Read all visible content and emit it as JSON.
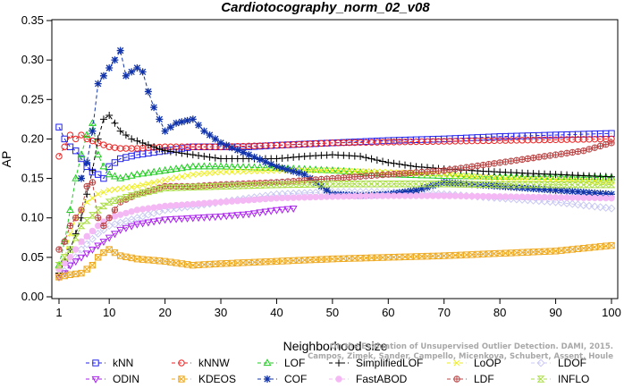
{
  "chart_data": {
    "type": "line",
    "title": "Cardiotocography_norm_02_v08",
    "xlabel": "Neighborhood size",
    "ylabel": "AP",
    "xlim": [
      1,
      100
    ],
    "ylim": [
      0,
      0.35
    ],
    "x_ticks": [
      "1",
      "10",
      "20",
      "30",
      "40",
      "50",
      "60",
      "70",
      "80",
      "90",
      "100"
    ],
    "x_tick_values": [
      1,
      10,
      20,
      30,
      40,
      50,
      60,
      70,
      80,
      90,
      100
    ],
    "y_ticks": [
      "0.00",
      "0.05",
      "0.10",
      "0.15",
      "0.20",
      "0.25",
      "0.30",
      "0.35"
    ],
    "y_tick_values": [
      0,
      0.05,
      0.1,
      0.15,
      0.2,
      0.25,
      0.3,
      0.35
    ],
    "grid": false,
    "legend_position": "bottom",
    "credit_lines": [
      "Campos, Zimek, Sander, Campello, Micenkova, Schubert, Assent, Houle",
      "On the Evaluation of Unsupervised Outlier Detection. DAMI, 2015."
    ],
    "series": [
      {
        "name": "kNN",
        "color": "#2222ee",
        "marker": "square",
        "points": [
          [
            1,
            0.215
          ],
          [
            2,
            0.2
          ],
          [
            3,
            0.19
          ],
          [
            4,
            0.185
          ],
          [
            5,
            0.175
          ],
          [
            6,
            0.165
          ],
          [
            7,
            0.158
          ],
          [
            8,
            0.155
          ],
          [
            9,
            0.15
          ],
          [
            10,
            0.165
          ],
          [
            12,
            0.175
          ],
          [
            15,
            0.18
          ],
          [
            20,
            0.185
          ],
          [
            25,
            0.19
          ],
          [
            30,
            0.19
          ],
          [
            35,
            0.19
          ],
          [
            40,
            0.192
          ],
          [
            50,
            0.195
          ],
          [
            60,
            0.198
          ],
          [
            70,
            0.2
          ],
          [
            80,
            0.203
          ],
          [
            90,
            0.205
          ],
          [
            100,
            0.207
          ]
        ]
      },
      {
        "name": "kNNW",
        "color": "#ee2222",
        "marker": "circle",
        "points": [
          [
            1,
            0.178
          ],
          [
            2,
            0.19
          ],
          [
            3,
            0.205
          ],
          [
            4,
            0.2
          ],
          [
            5,
            0.205
          ],
          [
            6,
            0.2
          ],
          [
            8,
            0.195
          ],
          [
            10,
            0.19
          ],
          [
            12,
            0.188
          ],
          [
            15,
            0.188
          ],
          [
            20,
            0.19
          ],
          [
            30,
            0.19
          ],
          [
            40,
            0.192
          ],
          [
            50,
            0.195
          ],
          [
            60,
            0.196
          ],
          [
            70,
            0.197
          ],
          [
            80,
            0.198
          ],
          [
            90,
            0.199
          ],
          [
            100,
            0.2
          ]
        ]
      },
      {
        "name": "LOF",
        "color": "#22cc22",
        "marker": "triangle-up",
        "points": [
          [
            1,
            0.04
          ],
          [
            2,
            0.07
          ],
          [
            3,
            0.11
          ],
          [
            4,
            0.15
          ],
          [
            5,
            0.18
          ],
          [
            6,
            0.205
          ],
          [
            7,
            0.22
          ],
          [
            8,
            0.18
          ],
          [
            9,
            0.165
          ],
          [
            10,
            0.155
          ],
          [
            12,
            0.15
          ],
          [
            15,
            0.155
          ],
          [
            20,
            0.16
          ],
          [
            25,
            0.165
          ],
          [
            30,
            0.165
          ],
          [
            40,
            0.163
          ],
          [
            50,
            0.16
          ],
          [
            60,
            0.155
          ],
          [
            70,
            0.153
          ],
          [
            80,
            0.152
          ],
          [
            90,
            0.152
          ],
          [
            100,
            0.151
          ]
        ]
      },
      {
        "name": "SimplifiedLOF",
        "color": "#000000",
        "marker": "plus",
        "points": [
          [
            1,
            0.03
          ],
          [
            2,
            0.045
          ],
          [
            3,
            0.06
          ],
          [
            4,
            0.08
          ],
          [
            5,
            0.1
          ],
          [
            6,
            0.13
          ],
          [
            7,
            0.16
          ],
          [
            8,
            0.2
          ],
          [
            9,
            0.225
          ],
          [
            10,
            0.23
          ],
          [
            11,
            0.22
          ],
          [
            12,
            0.21
          ],
          [
            14,
            0.2
          ],
          [
            16,
            0.195
          ],
          [
            18,
            0.19
          ],
          [
            20,
            0.185
          ],
          [
            25,
            0.18
          ],
          [
            30,
            0.175
          ],
          [
            40,
            0.175
          ],
          [
            45,
            0.178
          ],
          [
            50,
            0.18
          ],
          [
            55,
            0.178
          ],
          [
            60,
            0.17
          ],
          [
            65,
            0.165
          ],
          [
            70,
            0.162
          ],
          [
            80,
            0.158
          ],
          [
            90,
            0.155
          ],
          [
            100,
            0.152
          ]
        ]
      },
      {
        "name": "LoOP",
        "color": "#eeee22",
        "marker": "cross",
        "points": [
          [
            1,
            0.03
          ],
          [
            2,
            0.05
          ],
          [
            3,
            0.08
          ],
          [
            4,
            0.1
          ],
          [
            5,
            0.11
          ],
          [
            6,
            0.12
          ],
          [
            8,
            0.13
          ],
          [
            10,
            0.135
          ],
          [
            15,
            0.14
          ],
          [
            20,
            0.148
          ],
          [
            25,
            0.155
          ],
          [
            30,
            0.158
          ],
          [
            40,
            0.16
          ],
          [
            50,
            0.16
          ],
          [
            60,
            0.158
          ],
          [
            70,
            0.155
          ],
          [
            80,
            0.15
          ],
          [
            90,
            0.148
          ],
          [
            100,
            0.146
          ]
        ]
      },
      {
        "name": "LDOF",
        "color": "#c8c8f4",
        "marker": "diamond",
        "points": [
          [
            1,
            0.025
          ],
          [
            3,
            0.04
          ],
          [
            5,
            0.06
          ],
          [
            8,
            0.08
          ],
          [
            10,
            0.09
          ],
          [
            15,
            0.1
          ],
          [
            20,
            0.11
          ],
          [
            30,
            0.12
          ],
          [
            40,
            0.13
          ],
          [
            50,
            0.133
          ],
          [
            60,
            0.133
          ],
          [
            70,
            0.13
          ],
          [
            80,
            0.125
          ],
          [
            90,
            0.12
          ],
          [
            100,
            0.112
          ]
        ]
      },
      {
        "name": "ODIN",
        "color": "#aa22ee",
        "marker": "triangle-down",
        "points": [
          [
            1,
            0.025
          ],
          [
            2,
            0.03
          ],
          [
            3,
            0.04
          ],
          [
            5,
            0.05
          ],
          [
            7,
            0.06
          ],
          [
            10,
            0.075
          ],
          [
            12,
            0.085
          ],
          [
            15,
            0.092
          ],
          [
            20,
            0.098
          ],
          [
            25,
            0.1
          ],
          [
            30,
            0.102
          ],
          [
            35,
            0.105
          ],
          [
            40,
            0.11
          ],
          [
            43,
            0.112
          ]
        ]
      },
      {
        "name": "KDEOS",
        "color": "#eeaa22",
        "marker": "square-x",
        "points": [
          [
            1,
            0.025
          ],
          [
            3,
            0.028
          ],
          [
            5,
            0.03
          ],
          [
            6,
            0.035
          ],
          [
            7,
            0.04
          ],
          [
            8,
            0.05
          ],
          [
            9,
            0.056
          ],
          [
            10,
            0.06
          ],
          [
            12,
            0.052
          ],
          [
            15,
            0.048
          ],
          [
            20,
            0.045
          ],
          [
            25,
            0.04
          ],
          [
            30,
            0.042
          ],
          [
            40,
            0.045
          ],
          [
            50,
            0.048
          ],
          [
            60,
            0.05
          ],
          [
            70,
            0.052
          ],
          [
            80,
            0.055
          ],
          [
            90,
            0.058
          ],
          [
            100,
            0.065
          ]
        ]
      },
      {
        "name": "COF",
        "color": "#1133aa",
        "marker": "asterisk",
        "points": [
          [
            5,
            0.15
          ],
          [
            6,
            0.17
          ],
          [
            7,
            0.21
          ],
          [
            8,
            0.27
          ],
          [
            9,
            0.28
          ],
          [
            10,
            0.29
          ],
          [
            11,
            0.3
          ],
          [
            12,
            0.312
          ],
          [
            13,
            0.28
          ],
          [
            14,
            0.285
          ],
          [
            15,
            0.29
          ],
          [
            16,
            0.285
          ],
          [
            17,
            0.26
          ],
          [
            18,
            0.24
          ],
          [
            20,
            0.21
          ],
          [
            22,
            0.22
          ],
          [
            25,
            0.225
          ],
          [
            27,
            0.21
          ],
          [
            30,
            0.195
          ],
          [
            35,
            0.18
          ],
          [
            40,
            0.165
          ],
          [
            45,
            0.155
          ],
          [
            50,
            0.13
          ],
          [
            55,
            0.128
          ],
          [
            60,
            0.13
          ],
          [
            65,
            0.135
          ],
          [
            70,
            0.145
          ],
          [
            80,
            0.14
          ],
          [
            90,
            0.135
          ],
          [
            100,
            0.13
          ]
        ]
      },
      {
        "name": "FastABOD",
        "color": "#f4b8f4",
        "marker": "circle-filled",
        "points": [
          [
            1,
            0.035
          ],
          [
            3,
            0.05
          ],
          [
            5,
            0.07
          ],
          [
            8,
            0.09
          ],
          [
            10,
            0.1
          ],
          [
            15,
            0.11
          ],
          [
            20,
            0.115
          ],
          [
            30,
            0.12
          ],
          [
            40,
            0.125
          ],
          [
            50,
            0.127
          ],
          [
            60,
            0.128
          ],
          [
            70,
            0.128
          ],
          [
            80,
            0.127
          ],
          [
            90,
            0.126
          ],
          [
            100,
            0.125
          ]
        ]
      },
      {
        "name": "LDF",
        "color": "#bb4444",
        "marker": "circle-plus",
        "points": [
          [
            1,
            0.06
          ],
          [
            2,
            0.07
          ],
          [
            3,
            0.09
          ],
          [
            4,
            0.1
          ],
          [
            5,
            0.11
          ],
          [
            6,
            0.14
          ],
          [
            7,
            0.145
          ],
          [
            8,
            0.1
          ],
          [
            9,
            0.09
          ],
          [
            10,
            0.1
          ],
          [
            12,
            0.12
          ],
          [
            15,
            0.13
          ],
          [
            20,
            0.14
          ],
          [
            25,
            0.14
          ],
          [
            30,
            0.142
          ],
          [
            40,
            0.145
          ],
          [
            50,
            0.15
          ],
          [
            60,
            0.155
          ],
          [
            70,
            0.16
          ],
          [
            80,
            0.17
          ],
          [
            90,
            0.18
          ],
          [
            95,
            0.185
          ],
          [
            100,
            0.195
          ]
        ]
      },
      {
        "name": "INFLO",
        "color": "#aadd44",
        "marker": "hourglass",
        "points": [
          [
            1,
            0.04
          ],
          [
            3,
            0.06
          ],
          [
            5,
            0.09
          ],
          [
            8,
            0.11
          ],
          [
            10,
            0.12
          ],
          [
            15,
            0.13
          ],
          [
            20,
            0.138
          ],
          [
            30,
            0.14
          ],
          [
            40,
            0.142
          ],
          [
            50,
            0.143
          ],
          [
            60,
            0.143
          ],
          [
            70,
            0.143
          ],
          [
            80,
            0.142
          ],
          [
            90,
            0.142
          ],
          [
            100,
            0.142
          ]
        ]
      }
    ]
  }
}
